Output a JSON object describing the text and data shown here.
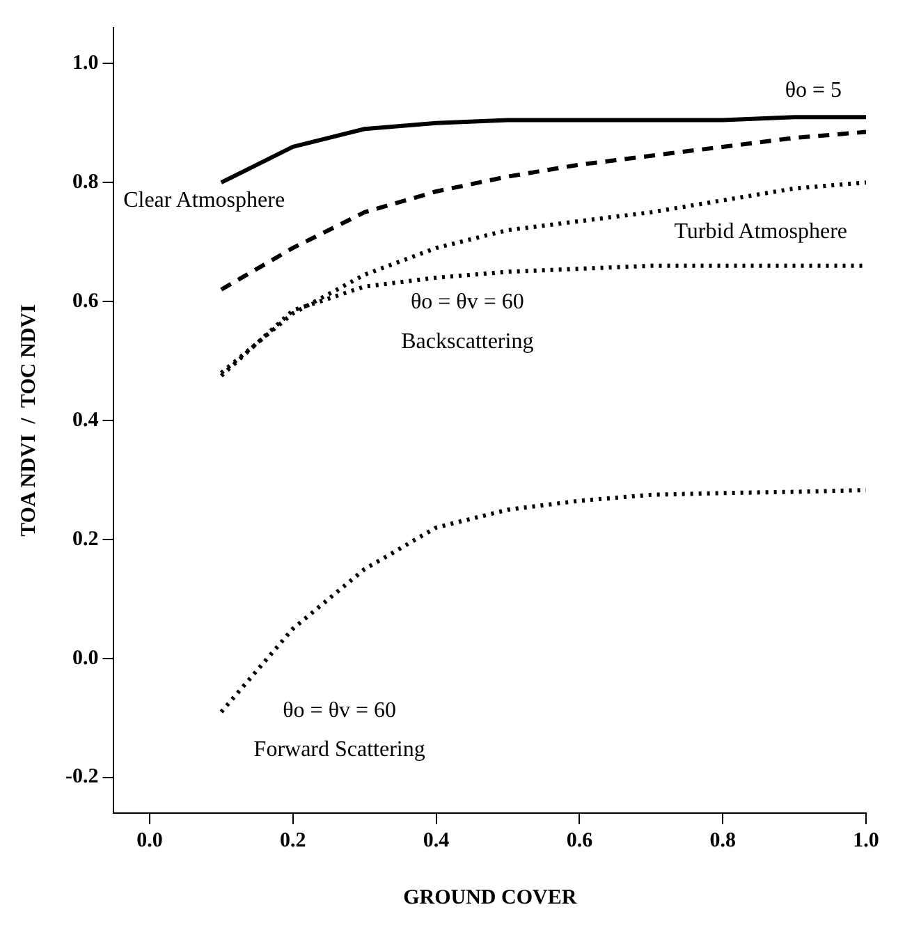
{
  "chart_data": {
    "type": "line",
    "xlabel": "GROUND COVER",
    "ylabel": "TOA NDVI  /  TOC NDVI",
    "x": [
      0.1,
      0.2,
      0.3,
      0.4,
      0.5,
      0.6,
      0.7,
      0.8,
      0.9,
      1.0
    ],
    "xlim": [
      -0.05,
      1.0
    ],
    "xticks": [
      {
        "value": 0,
        "label": "0.0"
      },
      0.2,
      0.4,
      0.6,
      0.8,
      {
        "value": 1,
        "label": "1.0"
      }
    ],
    "ylim": [
      -0.26,
      1.06
    ],
    "yticks": [
      -0.2,
      {
        "value": 0,
        "label": "0.0"
      },
      0.2,
      0.4,
      0.6,
      0.8,
      {
        "value": 1,
        "label": "1.0"
      }
    ],
    "grid": false,
    "legend": false,
    "marker": "none",
    "series": [
      {
        "color": "#000000",
        "line_style": "solid",
        "values": [
          0.8,
          0.86,
          0.89,
          0.9,
          0.905,
          0.905,
          0.905,
          0.905,
          0.91,
          0.91
        ]
      },
      {
        "color": "#000000",
        "line_style": "dashed",
        "values": [
          0.62,
          0.69,
          0.75,
          0.785,
          0.81,
          0.83,
          0.845,
          0.86,
          0.875,
          0.885
        ]
      },
      {
        "color": "#000000",
        "line_style": "dotted",
        "values": [
          0.48,
          0.58,
          0.645,
          0.69,
          0.72,
          0.735,
          0.75,
          0.77,
          0.79,
          0.8
        ]
      },
      {
        "color": "#000000",
        "line_style": "dotted",
        "values": [
          0.475,
          0.585,
          0.625,
          0.64,
          0.65,
          0.655,
          0.66,
          0.66,
          0.66,
          0.66
        ]
      },
      {
        "color": "#000000",
        "line_style": "dotted",
        "values": [
          -0.09,
          0.05,
          0.15,
          0.22,
          0.25,
          0.265,
          0.275,
          0.278,
          0.28,
          0.283
        ]
      }
    ],
    "annotations": [
      "θo = 5",
      "Clear Atmosphere",
      "Turbid Atmosphere",
      "θo = θv = 60",
      "Backscattering",
      "θo = θv = 60",
      "Forward Scattering"
    ]
  }
}
